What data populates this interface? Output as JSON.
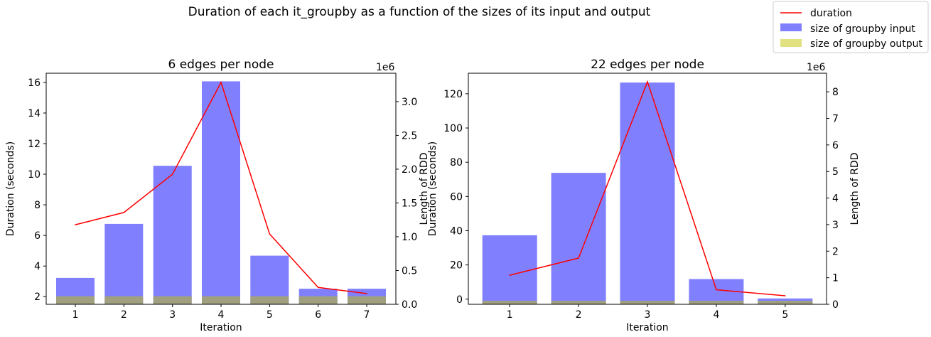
{
  "suptitle": "Duration of each it_groupby as a function of the sizes of its input and output",
  "legend": {
    "position": "top-right",
    "entries": [
      {
        "label": "duration",
        "kind": "line",
        "color": "#ff0000"
      },
      {
        "label": "size of groupby input",
        "kind": "patch",
        "color": "#8080ff"
      },
      {
        "label": "size of groupby output",
        "kind": "patch",
        "color": "#e1e182"
      }
    ]
  },
  "chart_data": [
    {
      "type": "bar",
      "title": "6 edges per node",
      "xlabel": "Iteration",
      "ylabel": "Duration (seconds)",
      "y2label": "Length of RDD",
      "y2_offset_label": "1e6",
      "categories": [
        "1",
        "2",
        "3",
        "4",
        "5",
        "6",
        "7"
      ],
      "xlim": [
        0.4,
        7.6
      ],
      "ylim": [
        1.5,
        16.6
      ],
      "yticks": [
        2,
        4,
        6,
        8,
        10,
        12,
        14,
        16
      ],
      "y2lim": [
        0,
        3.42
      ],
      "y2ticks": [
        0.0,
        0.5,
        1.0,
        1.5,
        2.0,
        2.5,
        3.0
      ],
      "series": [
        {
          "name": "duration",
          "axis": "left",
          "kind": "line",
          "color": "#ff0000",
          "values": [
            6.7,
            7.5,
            10.0,
            16.0,
            6.1,
            2.6,
            2.2
          ]
        },
        {
          "name": "size of groupby input",
          "axis": "right",
          "kind": "bar",
          "color": "#8080ff",
          "values": [
            0.39,
            1.19,
            2.05,
            3.3,
            0.72,
            0.23,
            0.23
          ]
        },
        {
          "name": "size of groupby output",
          "axis": "right",
          "kind": "bar",
          "color": "#a0a080",
          "values": [
            0.12,
            0.12,
            0.12,
            0.12,
            0.12,
            0.12,
            0.12
          ]
        }
      ]
    },
    {
      "type": "bar",
      "title": "22 edges per node",
      "xlabel": "Iteration",
      "ylabel": "Duration (seconds)",
      "y2label": "Length of RDD",
      "y2_offset_label": "1e6",
      "categories": [
        "1",
        "2",
        "3",
        "4",
        "5"
      ],
      "xlim": [
        0.4,
        5.6
      ],
      "ylim": [
        -3,
        132
      ],
      "yticks": [
        0,
        20,
        40,
        60,
        80,
        100,
        120
      ],
      "y2lim": [
        0,
        8.7
      ],
      "y2ticks": [
        0,
        1,
        2,
        3,
        4,
        5,
        6,
        7,
        8
      ],
      "series": [
        {
          "name": "duration",
          "axis": "left",
          "kind": "line",
          "color": "#ff0000",
          "values": [
            14,
            24,
            127,
            5.5,
            2
          ]
        },
        {
          "name": "size of groupby input",
          "axis": "right",
          "kind": "bar",
          "color": "#8080ff",
          "values": [
            2.6,
            4.95,
            8.35,
            0.95,
            0.22
          ]
        },
        {
          "name": "size of groupby output",
          "axis": "right",
          "kind": "bar",
          "color": "#a0a080",
          "values": [
            0.13,
            0.13,
            0.13,
            0.13,
            0.13
          ]
        }
      ]
    }
  ]
}
